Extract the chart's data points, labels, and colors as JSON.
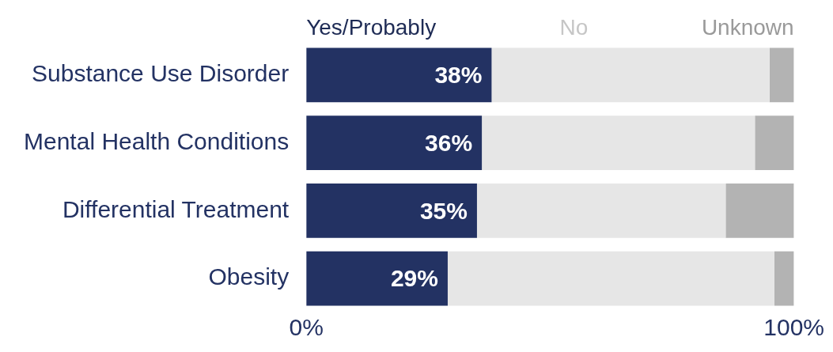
{
  "chart_data": {
    "type": "bar",
    "orientation": "horizontal",
    "stacked": true,
    "categories": [
      "Substance Use Disorder",
      "Mental Health Conditions",
      "Differential Treatment",
      "Obesity"
    ],
    "series": [
      {
        "name": "Yes/Probably",
        "color": "#233263",
        "values": [
          38,
          36,
          35,
          29
        ],
        "value_labels": [
          "38%",
          "36%",
          "35%",
          "29%"
        ]
      },
      {
        "name": "No",
        "color": "#e6e6e6",
        "values": [
          57,
          56,
          51,
          67
        ]
      },
      {
        "name": "Unknown",
        "color": "#b3b3b3",
        "values": [
          5,
          8,
          14,
          4
        ]
      }
    ],
    "xlim": [
      0,
      100
    ],
    "xticks": [
      {
        "value": 0,
        "label": "0%"
      },
      {
        "value": 100,
        "label": "100%"
      }
    ],
    "grid": false,
    "legend": "top"
  }
}
